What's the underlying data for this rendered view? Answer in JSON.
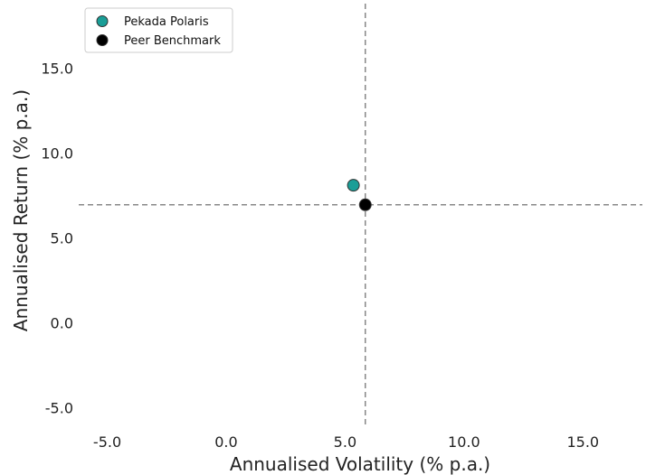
{
  "chart_data": {
    "type": "scatter",
    "title": "",
    "xlabel": "Annualised Volatility (% p.a.)",
    "ylabel": "Annualised Return (% p.a.)",
    "xlim": [
      -6.2,
      17.5
    ],
    "ylim": [
      -6.2,
      18.8
    ],
    "xticks": [
      -5.0,
      0.0,
      5.0,
      10.0,
      15.0
    ],
    "yticks": [
      -5.0,
      0.0,
      5.0,
      10.0,
      15.0
    ],
    "xtick_labels": [
      "-5.0",
      "0.0",
      "5.0",
      "10.0",
      "15.0"
    ],
    "ytick_labels": [
      "-5.0",
      "0.0",
      "5.0",
      "10.0",
      "15.0"
    ],
    "grid": false,
    "legend_position": "top-left",
    "reference_lines": {
      "vertical_x": 5.85,
      "horizontal_y": 6.95,
      "style": "dashed",
      "color": "#888888"
    },
    "series": [
      {
        "name": "Pekada Polaris",
        "x": [
          5.35
        ],
        "y": [
          8.1
        ],
        "color": "#1a9e97"
      },
      {
        "name": "Peer Benchmark",
        "x": [
          5.85
        ],
        "y": [
          6.95
        ],
        "color": "#000000"
      }
    ]
  }
}
